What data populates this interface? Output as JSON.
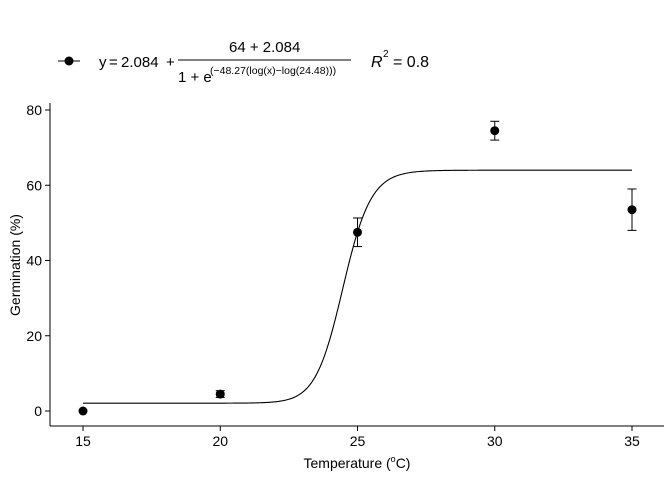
{
  "chart_data": {
    "type": "scatter",
    "title": "",
    "xlabel": "Temperature (",
    "xlabel_unit": "C)",
    "xlabel_degree": "o",
    "ylabel": "Germination (%)",
    "xlim": [
      15,
      35
    ],
    "ylim": [
      0,
      80
    ],
    "xticks": [
      15,
      20,
      25,
      30,
      35
    ],
    "yticks": [
      0,
      20,
      40,
      60,
      80
    ],
    "grid": false,
    "legend_position": "top",
    "points": [
      {
        "x": 15,
        "y": 0,
        "err": 0
      },
      {
        "x": 20,
        "y": 4.5,
        "err": 0.9
      },
      {
        "x": 25,
        "y": 47.5,
        "err": 3.8
      },
      {
        "x": 30,
        "y": 74.5,
        "err": 2.5
      },
      {
        "x": 35,
        "y": 53.5,
        "err": 5.5
      }
    ],
    "fit": {
      "model": "logistic",
      "c": 2.084,
      "d": 64,
      "b": -48.27,
      "e": 24.48
    },
    "legend": {
      "y_prefix": "y",
      "equals": "=",
      "constant": "2.084",
      "plus": "+",
      "numerator": "64 + 2.084",
      "denominator_base": "1 + e",
      "exponent": "(−48.27(log(x)−log(24.48)))",
      "r2_label": "R",
      "r2_sup": "2",
      "r2_value": "= 0.8"
    }
  }
}
